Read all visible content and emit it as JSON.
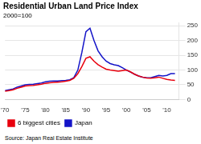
{
  "chart_data": {
    "type": "line",
    "title": "Residential Urban Land Price Index",
    "subtitle": "2000=100",
    "source": "Source: Japan Real Estate Institute",
    "x": [
      1970,
      1971,
      1972,
      1973,
      1974,
      1975,
      1976,
      1977,
      1978,
      1979,
      1980,
      1981,
      1982,
      1983,
      1984,
      1985,
      1986,
      1987,
      1988,
      1989,
      1990,
      1991,
      1992,
      1993,
      1994,
      1995,
      1996,
      1997,
      1998,
      1999,
      2000,
      2001,
      2002,
      2003,
      2004,
      2005,
      2006,
      2007,
      2008,
      2009,
      2010,
      2011,
      2012
    ],
    "series": [
      {
        "name": "6 biggest cities",
        "color": "#e8000d",
        "values": [
          28,
          30,
          33,
          38,
          42,
          46,
          47,
          48,
          50,
          52,
          55,
          57,
          58,
          59,
          60,
          62,
          65,
          72,
          88,
          112,
          140,
          145,
          130,
          118,
          110,
          103,
          100,
          98,
          96,
          98,
          100,
          94,
          86,
          80,
          76,
          73,
          72,
          74,
          76,
          72,
          68,
          66,
          65
        ]
      },
      {
        "name": "Japan",
        "color": "#1414c8",
        "values": [
          30,
          33,
          36,
          42,
          46,
          50,
          51,
          52,
          54,
          56,
          60,
          62,
          63,
          63,
          64,
          65,
          67,
          74,
          100,
          160,
          230,
          242,
          200,
          165,
          145,
          130,
          122,
          118,
          115,
          108,
          100,
          93,
          86,
          80,
          76,
          74,
          74,
          78,
          82,
          80,
          82,
          88,
          88
        ]
      }
    ],
    "xlim": [
      1970,
      2013
    ],
    "xticks": [
      {
        "value": 1970,
        "label": "'70"
      },
      {
        "value": 1975,
        "label": "'75"
      },
      {
        "value": 1980,
        "label": "'80"
      },
      {
        "value": 1985,
        "label": "'85"
      },
      {
        "value": 1990,
        "label": "'90"
      },
      {
        "value": 1995,
        "label": "'95"
      },
      {
        "value": 2000,
        "label": "'00"
      },
      {
        "value": 2005,
        "label": "'05"
      },
      {
        "value": 2010,
        "label": "'10"
      }
    ],
    "ylim": [
      0,
      260
    ],
    "yticks": [
      0,
      50,
      100,
      150,
      200,
      250
    ],
    "grid": "y",
    "legend": "bottom"
  }
}
